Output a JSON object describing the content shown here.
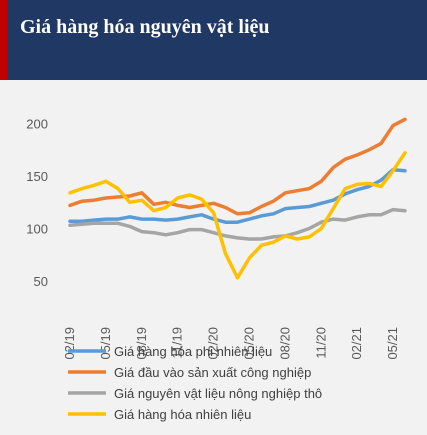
{
  "header": {
    "title": "Giá hàng hóa nguyên vật liệu"
  },
  "colors": {
    "header_bg": "#1f3864",
    "header_accent": "#c00000",
    "chart_bg": "#f2f2f2"
  },
  "chart_data": {
    "type": "line",
    "title": "",
    "xlabel": "",
    "ylabel": "",
    "ylim": [
      30,
      210
    ],
    "yticks": [
      50,
      100,
      150,
      200
    ],
    "grid": false,
    "legend_position": "bottom",
    "x": [
      "02/19",
      "03/19",
      "04/19",
      "05/19",
      "06/19",
      "07/19",
      "08/19",
      "09/19",
      "10/19",
      "11/19",
      "12/19",
      "01/20",
      "02/20",
      "03/20",
      "04/20",
      "05/20",
      "06/20",
      "07/20",
      "08/20",
      "09/20",
      "10/20",
      "11/20",
      "12/20",
      "01/21",
      "02/21",
      "03/21",
      "04/21",
      "05/21",
      "06/21"
    ],
    "xtick_labels": [
      "02/19",
      "05/19",
      "08/19",
      "11/19",
      "02/20",
      "05/20",
      "08/20",
      "11/20",
      "02/21",
      "05/21"
    ],
    "series": [
      {
        "name": "Giá hàng hóa phi nhiên liệu",
        "color": "#5b9bd5",
        "values": [
          107,
          107,
          108,
          109,
          109,
          111,
          109,
          109,
          108,
          109,
          111,
          113,
          109,
          106,
          106,
          109,
          112,
          114,
          119,
          120,
          121,
          124,
          127,
          133,
          137,
          140,
          146,
          156,
          155
        ]
      },
      {
        "name": "Giá đầu vào sản xuất công nghiệp",
        "color": "#ed7d31",
        "values": [
          122,
          126,
          127,
          129,
          130,
          131,
          134,
          123,
          125,
          122,
          120,
          122,
          124,
          120,
          114,
          115,
          121,
          126,
          134,
          136,
          138,
          145,
          158,
          166,
          170,
          175,
          181,
          198,
          204
        ]
      },
      {
        "name": "Giá nguyên vật liệu nông nghiệp thô",
        "color": "#a5a5a5",
        "values": [
          103,
          104,
          105,
          105,
          105,
          102,
          97,
          96,
          94,
          96,
          99,
          99,
          96,
          93,
          91,
          90,
          90,
          92,
          93,
          96,
          100,
          106,
          109,
          108,
          111,
          113,
          113,
          118,
          117
        ]
      },
      {
        "name": "Giá hàng hóa nhiên liệu",
        "color": "#ffc000",
        "values": [
          134,
          138,
          141,
          145,
          138,
          125,
          127,
          117,
          120,
          129,
          132,
          128,
          115,
          76,
          53,
          72,
          84,
          87,
          93,
          90,
          92,
          100,
          119,
          138,
          142,
          143,
          140,
          155,
          172
        ]
      }
    ]
  }
}
